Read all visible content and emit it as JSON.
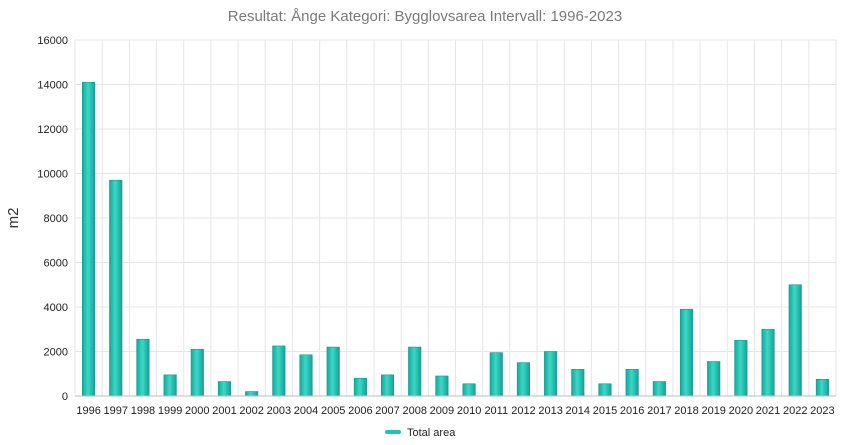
{
  "chart_data": {
    "type": "bar",
    "title": "Resultat: Ånge Kategori: Bygglovsarea Intervall: 1996-2023",
    "xlabel": "",
    "ylabel": "m2",
    "ylim": [
      0,
      16000
    ],
    "yticks": [
      0,
      2000,
      4000,
      6000,
      8000,
      10000,
      12000,
      14000,
      16000
    ],
    "grid": true,
    "legend_position": "bottom-center",
    "categories": [
      "1996",
      "1997",
      "1998",
      "1999",
      "2000",
      "2001",
      "2002",
      "2003",
      "2004",
      "2005",
      "2006",
      "2007",
      "2008",
      "2009",
      "2010",
      "2011",
      "2012",
      "2013",
      "2014",
      "2015",
      "2016",
      "2017",
      "2018",
      "2019",
      "2020",
      "2021",
      "2022",
      "2023"
    ],
    "series": [
      {
        "name": "Total area",
        "color": "#20c4b4",
        "values": [
          14100,
          9700,
          2550,
          950,
          2100,
          650,
          200,
          2250,
          1850,
          2200,
          800,
          950,
          2200,
          900,
          550,
          1950,
          1500,
          2000,
          1200,
          550,
          1200,
          650,
          3900,
          1550,
          2500,
          3000,
          5000,
          750
        ]
      }
    ]
  }
}
